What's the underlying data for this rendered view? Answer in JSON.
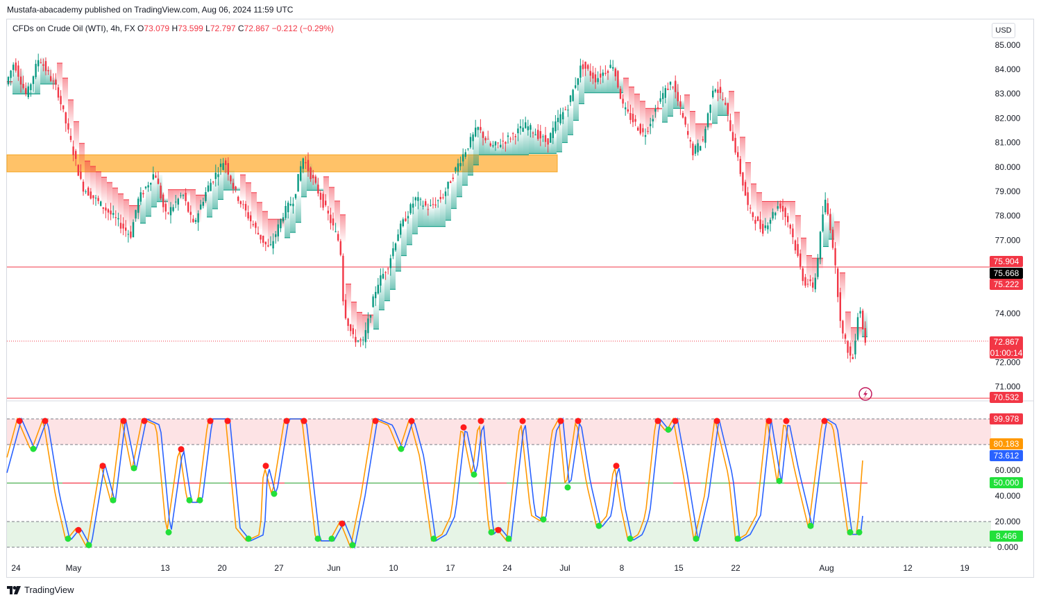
{
  "header": {
    "published": "Mustafa-abacademy published on TradingView.com, Aug 06, 2024 11:59 UTC"
  },
  "legend": {
    "symbol": "CFDs on Crude Oil (WTI), 4h, FX",
    "open_label": "O",
    "open": "73.079",
    "high_label": "H",
    "high": "73.599",
    "low_label": "L",
    "low": "72.797",
    "close_label": "C",
    "close": "72.867",
    "change": "−0.212 (−0.29%)"
  },
  "currency": "USD",
  "footer": {
    "brand": "TradingView"
  },
  "colors": {
    "up": "#089981",
    "down": "#f23645",
    "zone": "#ffb74d",
    "k_line": "#ff9800",
    "d_line": "#2962ff",
    "mid_line": "#4caf50",
    "bull_dot": "#22e03a",
    "bear_dot": "#ff1a1a"
  },
  "chart_data": [
    {
      "type": "candlestick",
      "timeframe": "4h",
      "y_ticks": [
        "85.000",
        "84.000",
        "83.000",
        "82.000",
        "81.000",
        "80.000",
        "79.000",
        "78.000",
        "77.000",
        "74.000",
        "72.000",
        "71.000"
      ],
      "ylim": [
        70.3,
        85.5
      ],
      "x_ticks": [
        "24",
        "May",
        "13",
        "20",
        "27",
        "Jun",
        "10",
        "17",
        "24",
        "Jul",
        "8",
        "15",
        "22",
        "Aug",
        "12",
        "19"
      ],
      "price_path": [
        [
          0,
          82.6
        ],
        [
          22,
          84.3
        ],
        [
          40,
          82.9
        ],
        [
          58,
          84.5
        ],
        [
          85,
          83.1
        ],
        [
          120,
          79.2
        ],
        [
          160,
          78.1
        ],
        [
          190,
          77.2
        ],
        [
          200,
          78.6
        ],
        [
          225,
          79.8
        ],
        [
          240,
          78.0
        ],
        [
          265,
          78.9
        ],
        [
          280,
          77.6
        ],
        [
          300,
          79.1
        ],
        [
          325,
          80.3
        ],
        [
          340,
          79.0
        ],
        [
          355,
          78.2
        ],
        [
          375,
          77.2
        ],
        [
          390,
          76.6
        ],
        [
          410,
          78.1
        ],
        [
          425,
          78.7
        ],
        [
          438,
          80.4
        ],
        [
          460,
          79.0
        ],
        [
          475,
          78.0
        ],
        [
          492,
          76.8
        ],
        [
          497,
          74.2
        ],
        [
          510,
          73.0
        ],
        [
          525,
          72.8
        ],
        [
          545,
          75.2
        ],
        [
          560,
          75.9
        ],
        [
          575,
          77.3
        ],
        [
          600,
          78.7
        ],
        [
          620,
          78.3
        ],
        [
          640,
          78.8
        ],
        [
          665,
          80.3
        ],
        [
          690,
          81.6
        ],
        [
          710,
          80.8
        ],
        [
          730,
          81.1
        ],
        [
          760,
          81.7
        ],
        [
          790,
          81.0
        ],
        [
          805,
          81.9
        ],
        [
          820,
          82.5
        ],
        [
          840,
          84.2
        ],
        [
          860,
          83.6
        ],
        [
          885,
          84.2
        ],
        [
          900,
          82.4
        ],
        [
          930,
          81.3
        ],
        [
          955,
          82.9
        ],
        [
          970,
          83.5
        ],
        [
          1000,
          80.6
        ],
        [
          1015,
          81.1
        ],
        [
          1030,
          83.4
        ],
        [
          1045,
          82.7
        ],
        [
          1060,
          80.9
        ],
        [
          1080,
          78.3
        ],
        [
          1100,
          77.4
        ],
        [
          1125,
          78.5
        ],
        [
          1140,
          77.6
        ],
        [
          1160,
          75.3
        ],
        [
          1175,
          75.1
        ],
        [
          1190,
          78.7
        ],
        [
          1200,
          77.3
        ],
        [
          1215,
          73.2
        ],
        [
          1230,
          72.0
        ],
        [
          1240,
          74.5
        ],
        [
          1247,
          72.9
        ]
      ],
      "supply_zone": {
        "from": 79.8,
        "to": 80.5
      },
      "horizontal_lines": [
        75.904,
        70.532
      ],
      "price_labels": [
        {
          "value": "75.904",
          "color": "#f23645"
        },
        {
          "value": "75.668",
          "color": "#000000"
        },
        {
          "value": "75.222",
          "color": "#f23645"
        },
        {
          "value": "72.867",
          "color": "#f23645",
          "countdown": "01:00:14"
        },
        {
          "value": "70.532",
          "color": "#f23645"
        }
      ]
    },
    {
      "type": "line",
      "indicator": "stochastic",
      "y_ticks": [
        "0.000",
        "20.000",
        "40.000",
        "60.000",
        "80.000"
      ],
      "levels": [
        0,
        20,
        50,
        80,
        100
      ],
      "ylim": [
        0,
        100
      ],
      "k_path": [
        [
          0,
          50
        ],
        [
          25,
          100
        ],
        [
          45,
          75
        ],
        [
          62,
          100
        ],
        [
          80,
          40
        ],
        [
          95,
          5
        ],
        [
          110,
          15
        ],
        [
          125,
          0
        ],
        [
          145,
          65
        ],
        [
          160,
          35
        ],
        [
          175,
          100
        ],
        [
          190,
          60
        ],
        [
          205,
          100
        ],
        [
          225,
          95
        ],
        [
          240,
          10
        ],
        [
          258,
          78
        ],
        [
          270,
          35
        ],
        [
          285,
          35
        ],
        [
          300,
          100
        ],
        [
          325,
          100
        ],
        [
          340,
          15
        ],
        [
          355,
          5
        ],
        [
          375,
          10
        ],
        [
          380,
          65
        ],
        [
          392,
          40
        ],
        [
          410,
          100
        ],
        [
          435,
          100
        ],
        [
          455,
          5
        ],
        [
          475,
          5
        ],
        [
          490,
          20
        ],
        [
          505,
          0
        ],
        [
          520,
          40
        ],
        [
          538,
          100
        ],
        [
          560,
          95
        ],
        [
          575,
          75
        ],
        [
          590,
          100
        ],
        [
          605,
          70
        ],
        [
          622,
          5
        ],
        [
          637,
          10
        ],
        [
          650,
          25
        ],
        [
          665,
          95
        ],
        [
          680,
          55
        ],
        [
          690,
          100
        ],
        [
          705,
          10
        ],
        [
          715,
          15
        ],
        [
          730,
          5
        ],
        [
          750,
          100
        ],
        [
          765,
          25
        ],
        [
          780,
          20
        ],
        [
          795,
          90
        ],
        [
          805,
          100
        ],
        [
          815,
          45
        ],
        [
          830,
          100
        ],
        [
          845,
          50
        ],
        [
          860,
          15
        ],
        [
          875,
          25
        ],
        [
          885,
          65
        ],
        [
          895,
          30
        ],
        [
          905,
          5
        ],
        [
          920,
          10
        ],
        [
          930,
          25
        ],
        [
          945,
          100
        ],
        [
          960,
          90
        ],
        [
          970,
          100
        ],
        [
          985,
          55
        ],
        [
          1000,
          5
        ],
        [
          1015,
          40
        ],
        [
          1030,
          100
        ],
        [
          1050,
          55
        ],
        [
          1060,
          5
        ],
        [
          1075,
          10
        ],
        [
          1090,
          25
        ],
        [
          1105,
          100
        ],
        [
          1120,
          50
        ],
        [
          1130,
          100
        ],
        [
          1145,
          60
        ],
        [
          1165,
          15
        ],
        [
          1185,
          100
        ],
        [
          1200,
          95
        ],
        [
          1222,
          10
        ],
        [
          1235,
          10
        ],
        [
          1245,
          82
        ]
      ],
      "values_shown": {
        "top": "99.978",
        "k": "80.183",
        "d": "73.612",
        "mid": "50.000",
        "low": "8.466"
      }
    }
  ]
}
